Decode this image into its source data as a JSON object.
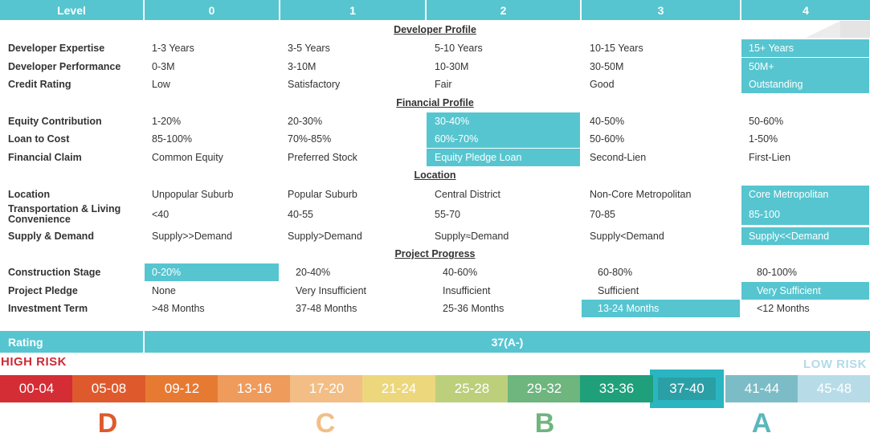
{
  "header": {
    "level_label": "Level",
    "levels": [
      "0",
      "1",
      "2",
      "3",
      "4"
    ]
  },
  "sections": {
    "developer": "Developer Profile",
    "financial": "Financial Profile",
    "location": "Location",
    "progress": "Project Progress"
  },
  "rows": {
    "dev_expertise": {
      "label": "Developer Expertise",
      "values": [
        "1-3 Years",
        "3-5 Years",
        "5-10 Years",
        "10-15 Years",
        "15+ Years"
      ],
      "selected": 4
    },
    "dev_performance": {
      "label": "Developer Performance",
      "values": [
        "0-3M",
        "3-10M",
        "10-30M",
        "30-50M",
        "50M+"
      ],
      "selected": 4
    },
    "credit_rating": {
      "label": "Credit Rating",
      "values": [
        "Low",
        "Satisfactory",
        "Fair",
        "Good",
        "Outstanding"
      ],
      "selected": 4
    },
    "equity_contribution": {
      "label": "Equity Contribution",
      "values": [
        "1-20%",
        "20-30%",
        "30-40%",
        "40-50%",
        "50-60%"
      ],
      "selected": 2
    },
    "loan_to_cost": {
      "label": "Loan to Cost",
      "values": [
        "85-100%",
        "70%-85%",
        "60%-70%",
        "50-60%",
        "1-50%"
      ],
      "selected": 2
    },
    "financial_claim": {
      "label": "Financial Claim",
      "values": [
        "Common Equity",
        "Preferred Stock",
        "Equity Pledge Loan",
        "Second-Lien",
        "First-Lien"
      ],
      "selected": 2
    },
    "location": {
      "label": "Location",
      "values": [
        "Unpopular Suburb",
        "Popular Suburb",
        "Central District",
        "Non-Core Metropolitan",
        "Core Metropolitan"
      ],
      "selected": 4
    },
    "transportation": {
      "label_line1": "Transportation & Living",
      "label_line2": "Convenience",
      "values": [
        "<40",
        "40-55",
        "55-70",
        "70-85",
        "85-100"
      ],
      "selected": 4
    },
    "supply_demand": {
      "label": "Supply & Demand",
      "values": [
        "Supply>>Demand",
        "Supply>Demand",
        "Supply≈Demand",
        "Supply<Demand",
        "Supply<<Demand"
      ],
      "selected": 4
    },
    "construction_stage": {
      "label": "Construction Stage",
      "values": [
        "0-20%",
        "20-40%",
        "40-60%",
        "60-80%",
        "80-100%"
      ],
      "selected": 0
    },
    "project_pledge": {
      "label": "Project Pledge",
      "values": [
        "None",
        "Very Insufficient",
        "Insufficient",
        "Sufficient",
        "Very Sufficient"
      ],
      "selected": 4
    },
    "investment_term": {
      "label": "Investment Term",
      "values": [
        ">48 Months",
        "37-48 Months",
        "25-36 Months",
        "13-24 Months",
        "<12 Months"
      ],
      "selected": 3
    }
  },
  "rating": {
    "label": "Rating",
    "value": "37(A-)"
  },
  "risk": {
    "high": "HIGH RISK",
    "low": "LOW RISK"
  },
  "scale": {
    "ranges": [
      "00-04",
      "05-08",
      "09-12",
      "13-16",
      "17-20",
      "21-24",
      "25-28",
      "29-32",
      "33-36",
      "37-40",
      "41-44",
      "45-48"
    ],
    "colors": [
      "#d42d36",
      "#de5a2d",
      "#e77a33",
      "#ee9b5c",
      "#f2be86",
      "#ecd77d",
      "#bcd07c",
      "#6eb57e",
      "#1fa07a",
      "#2b9fa6",
      "#7cbcc6",
      "#b7dce8"
    ],
    "selected_index": 9
  },
  "grades": [
    {
      "letter": "D",
      "color": "#de5a2d"
    },
    {
      "letter": "C",
      "color": "#f2be86"
    },
    {
      "letter": "B",
      "color": "#6eb57e"
    },
    {
      "letter": "A",
      "color": "#5bb7bc"
    }
  ],
  "colors": {
    "accent": "#56c5d0",
    "text": "#333333"
  }
}
